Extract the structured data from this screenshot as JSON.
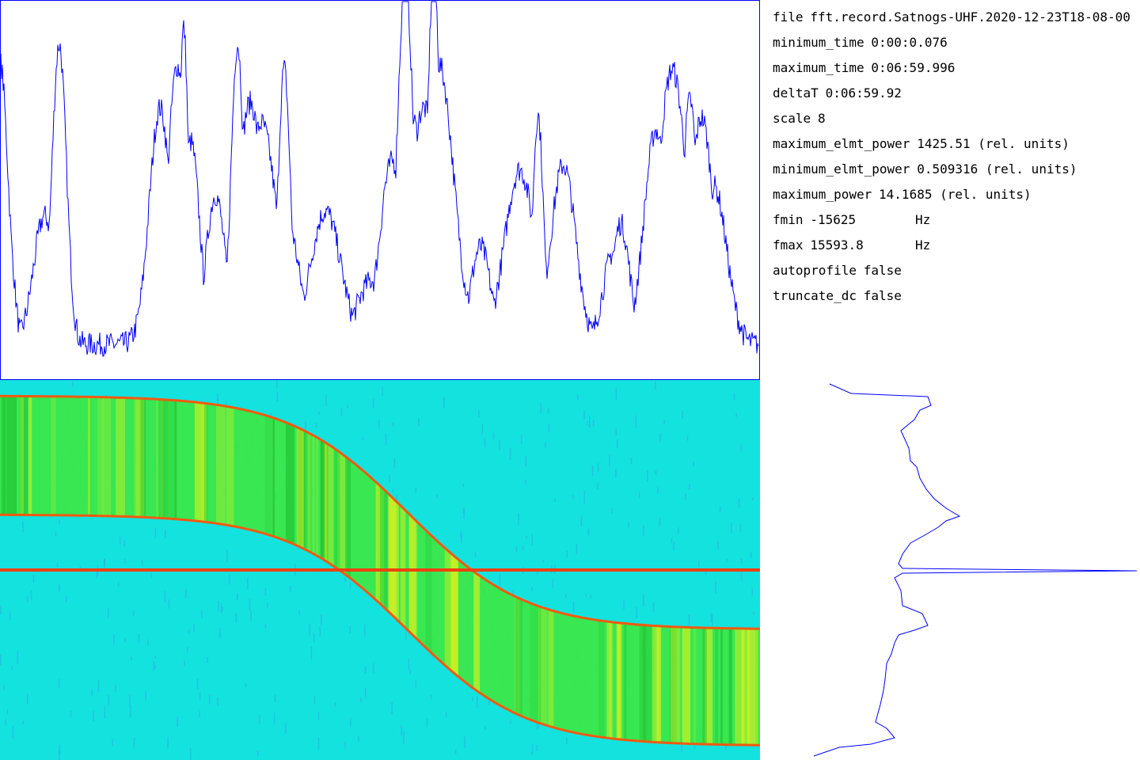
{
  "info": {
    "rows": [
      [
        "file",
        "fft.record.Satnogs-UHF.2020-12-23T18-08-00"
      ],
      [
        "minimum_time",
        "0:00:0.076"
      ],
      [
        "maximum_time",
        "0:06:59.996"
      ],
      [
        "deltaT",
        "0:06:59.92"
      ],
      [
        "scale",
        "8"
      ],
      [
        "maximum_elmt_power",
        "1425.51 (rel. units)"
      ],
      [
        "minimum_elmt_power",
        "0.509316 (rel. units)"
      ],
      [
        "maximum_power",
        "14.1685 (rel. units)"
      ],
      [
        "fmin",
        "-15625",
        "Hz"
      ],
      [
        "fmax",
        "15593.8",
        "Hz"
      ],
      [
        "autoprofile",
        "false"
      ],
      [
        "truncate_dc",
        "false"
      ]
    ]
  }
}
